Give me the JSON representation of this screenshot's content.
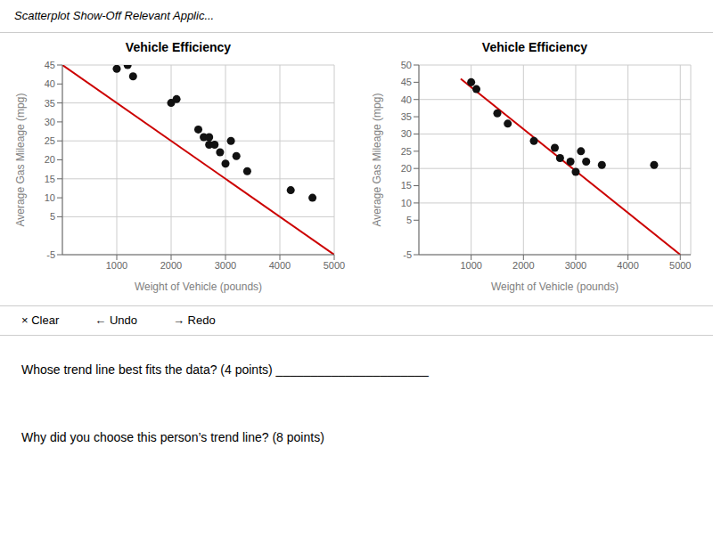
{
  "annotations": [
    "Scatterplot Show-Off Relevant Applic...",
    "× Clear",
    "← Undo",
    "→ Redo",
    "Whose trend line best fits the data? (4 points) ______________________",
    "Why did you choose this person’s trend line? (8 points)"
  ],
  "chart_data": [
    {
      "type": "scatter",
      "title": "Vehicle Efficiency",
      "x_label": "Weight of Vehicle (pounds)",
      "y_label": "Average Gas Mileage (mpg)",
      "xlim": [
        0,
        5000
      ],
      "ylim": [
        -5,
        45
      ],
      "xticks": [
        1000,
        2000,
        3000,
        4000,
        5000
      ],
      "yticks": [
        -5,
        5,
        10,
        15,
        20,
        25,
        30,
        35,
        40,
        45
      ],
      "grid": true,
      "series": [
        {
          "type": "scatter",
          "color": "#111111",
          "x": [
            1000,
            1200,
            1300,
            2000,
            2100,
            2500,
            2600,
            2700,
            2700,
            2800,
            2900,
            3000,
            3100,
            3200,
            3400,
            4200,
            4600
          ],
          "values": [
            44,
            45,
            42,
            35,
            36,
            28,
            26,
            26,
            24,
            24,
            22,
            19,
            25,
            21,
            17,
            12,
            10
          ]
        },
        {
          "type": "line",
          "color": "#cc0000",
          "x": [
            0,
            5000
          ],
          "values": [
            45,
            -5
          ]
        }
      ]
    },
    {
      "type": "scatter",
      "title": "Vehicle Efficiency",
      "x_label": "Weight of Vehicle (pounds)",
      "y_label": "Average Gas Mileage (mpg)",
      "xlim": [
        0,
        5200
      ],
      "ylim": [
        -5,
        50
      ],
      "xticks": [
        1000,
        2000,
        3000,
        4000,
        5000
      ],
      "yticks": [
        -5,
        5,
        10,
        15,
        20,
        25,
        30,
        35,
        40,
        45,
        50
      ],
      "grid": true,
      "series": [
        {
          "type": "scatter",
          "color": "#111111",
          "x": [
            1000,
            1100,
            1500,
            1700,
            2200,
            2600,
            2700,
            2900,
            3000,
            3100,
            3200,
            3500,
            4500
          ],
          "values": [
            45,
            43,
            36,
            33,
            28,
            26,
            23,
            22,
            19,
            25,
            22,
            21,
            21
          ]
        },
        {
          "type": "line",
          "color": "#cc0000",
          "x": [
            800,
            5000
          ],
          "values": [
            46,
            -5
          ]
        }
      ]
    }
  ]
}
